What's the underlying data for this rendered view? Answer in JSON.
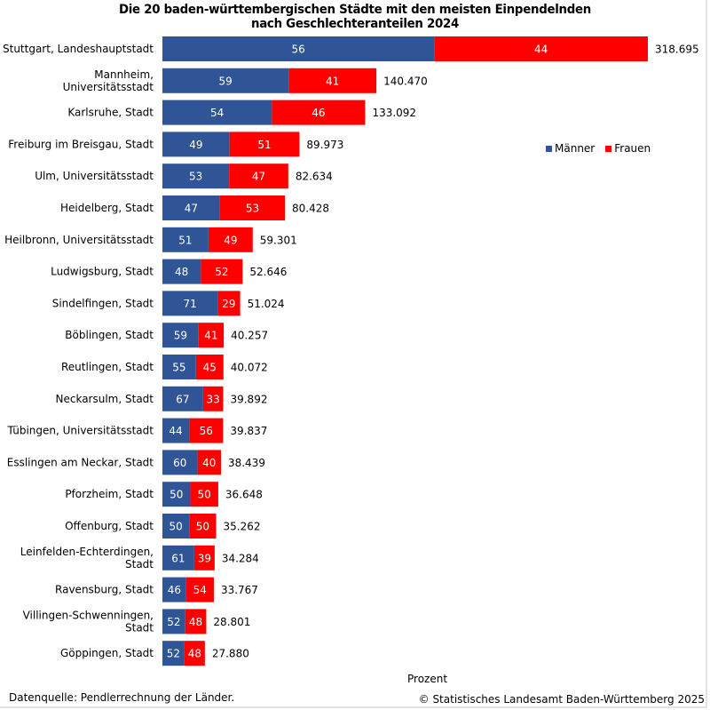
{
  "chart_data": {
    "type": "bar",
    "orientation": "horizontal",
    "stacked": true,
    "title": "Die 20 baden-württembergischen Städte mit den meisten Einpendelnden nach Geschlechteranteilen  2024",
    "title_lines": [
      "Die 20 baden-württembergischen  Städte mit den meisten Einpendelnden",
      "nach Geschlechteranteilen  2024"
    ],
    "xlabel": "Prozent",
    "ylabel": "",
    "legend_position": "right",
    "grid": false,
    "categories": [
      "Stuttgart, Landeshauptstadt",
      "Mannheim, Universitätsstadt",
      "Karlsruhe, Stadt",
      "Freiburg im Breisgau, Stadt",
      "Ulm, Universitätsstadt",
      "Heidelberg, Stadt",
      "Heilbronn, Universitätsstadt",
      "Ludwigsburg, Stadt",
      "Sindelfingen, Stadt",
      "Böblingen, Stadt",
      "Reutlingen, Stadt",
      "Neckarsulm, Stadt",
      "Tübingen, Universitätsstadt",
      "Esslingen am Neckar, Stadt",
      "Pforzheim, Stadt",
      "Offenburg, Stadt",
      "Leinfelden-Echterdingen, Stadt",
      "Ravensburg, Stadt",
      "Villingen-Schwenningen, Stadt",
      "Göppingen, Stadt"
    ],
    "category_label_lines": [
      [
        "Stuttgart, Landeshauptstadt"
      ],
      [
        "Mannheim,",
        "Universitätsstadt"
      ],
      [
        "Karlsruhe, Stadt"
      ],
      [
        "Freiburg im Breisgau, Stadt"
      ],
      [
        "Ulm, Universitätsstadt"
      ],
      [
        "Heidelberg, Stadt"
      ],
      [
        "Heilbronn, Universitätsstadt"
      ],
      [
        "Ludwigsburg, Stadt"
      ],
      [
        "Sindelfingen, Stadt"
      ],
      [
        "Böblingen, Stadt"
      ],
      [
        "Reutlingen, Stadt"
      ],
      [
        "Neckarsulm, Stadt"
      ],
      [
        "Tübingen, Universitätsstadt"
      ],
      [
        "Esslingen am Neckar, Stadt"
      ],
      [
        "Pforzheim, Stadt"
      ],
      [
        "Offenburg, Stadt"
      ],
      [
        "Leinfelden-Echterdingen,",
        "Stadt"
      ],
      [
        "Ravensburg, Stadt"
      ],
      [
        "Villingen-Schwenningen,",
        "Stadt"
      ],
      [
        "Göppingen, Stadt"
      ]
    ],
    "series": [
      {
        "name": "Männer",
        "color": "#2f5597",
        "values": [
          56,
          59,
          54,
          49,
          53,
          47,
          51,
          48,
          71,
          59,
          55,
          67,
          44,
          60,
          50,
          50,
          61,
          46,
          52,
          52
        ]
      },
      {
        "name": "Frauen",
        "color": "#ff0000",
        "values": [
          44,
          41,
          46,
          51,
          47,
          53,
          49,
          52,
          29,
          41,
          45,
          33,
          56,
          40,
          50,
          50,
          39,
          54,
          48,
          48
        ]
      }
    ],
    "totals": [
      318695,
      140470,
      133092,
      89973,
      82634,
      80428,
      59301,
      52646,
      51024,
      40257,
      40072,
      39892,
      39837,
      38439,
      36648,
      35262,
      34284,
      33767,
      28801,
      27880
    ],
    "total_labels": [
      "318.695",
      "140.470",
      "133.092",
      "89.973",
      "82.634",
      "80.428",
      "59.301",
      "52.646",
      "51.024",
      "40.257",
      "40.072",
      "39.892",
      "39.837",
      "38.439",
      "36.648",
      "35.262",
      "34.284",
      "33.767",
      "28.801",
      "27.880"
    ],
    "note": "Bar length proportional to total number of commuters; segments show percentage shares."
  },
  "legend": {
    "items": [
      {
        "label": "Männer",
        "color": "#2f5597"
      },
      {
        "label": "Frauen",
        "color": "#ff0000"
      }
    ]
  },
  "footer": {
    "source": "Datenquelle: Pendlerrechnung der Länder.",
    "copyright": "© Statistisches Landesamt Baden-Württemberg 2025"
  }
}
